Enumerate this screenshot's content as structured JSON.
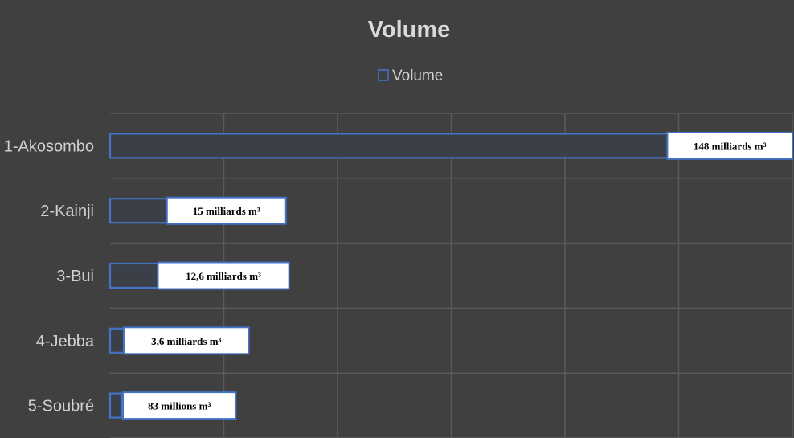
{
  "chart_data": {
    "type": "bar",
    "orientation": "horizontal",
    "title": "Volume",
    "legend": {
      "entries": [
        "Volume"
      ],
      "position": "top"
    },
    "grid": true,
    "categories": [
      "1-Akosombo",
      "2-Kainji",
      "3-Bui",
      "4-Jebba",
      "5-Soubré"
    ],
    "series": [
      {
        "name": "Volume",
        "values": [
          148,
          15,
          12.6,
          3.6,
          0.083
        ],
        "unit": "milliards m³"
      }
    ],
    "data_labels": [
      "148 milliards m³",
      "15 milliards m³",
      "12,6 milliards m³",
      "3,6 milliards m³",
      "83 millions m³"
    ],
    "xlim": [
      0,
      180
    ],
    "colors": {
      "bar_outline": "#4472c4",
      "background": "#404040",
      "label_box": "#ffffff"
    }
  }
}
